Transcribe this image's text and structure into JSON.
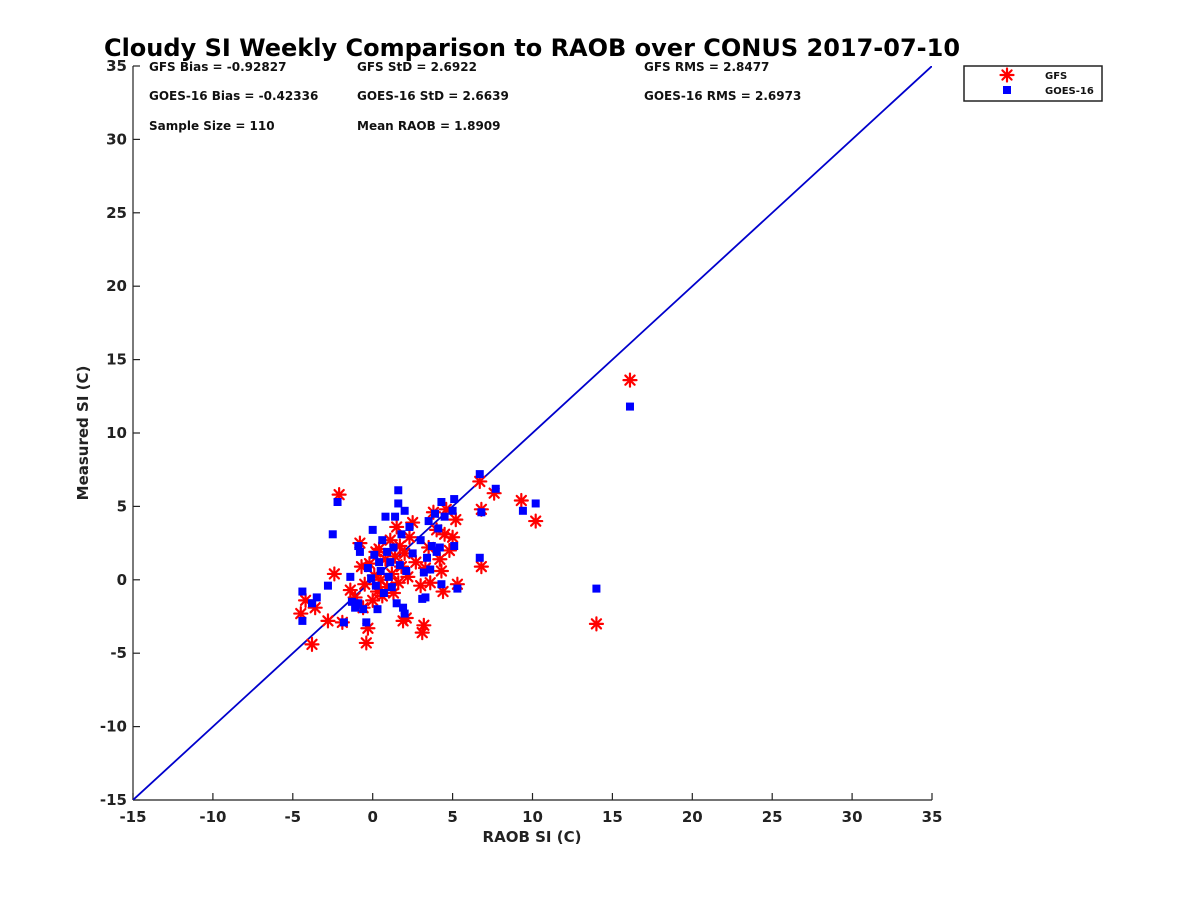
{
  "chart_data": {
    "type": "scatter",
    "title": "Cloudy SI Weekly Comparison to RAOB over CONUS 2017-07-10",
    "xlabel": "RAOB SI (C)",
    "ylabel": "Measured SI (C)",
    "xlim": [
      -15,
      35
    ],
    "ylim": [
      -15,
      35
    ],
    "x_ticks": [
      "-15",
      "-10",
      "-5",
      "0",
      "5",
      "10",
      "15",
      "20",
      "25",
      "30",
      "35"
    ],
    "y_ticks": [
      "-15",
      "-10",
      "-5",
      "0",
      "5",
      "10",
      "15",
      "20",
      "25",
      "30",
      "35"
    ],
    "grid": false,
    "legend_position": "outside top-right",
    "reference_line": {
      "type": "one-to-one",
      "color": "#0000cc"
    },
    "stats": [
      "GFS Bias = -0.92827",
      "GFS StD = 2.6922",
      "GFS RMS = 2.8477",
      "GOES-16 Bias = -0.42336",
      "GOES-16 StD = 2.6639",
      "GOES-16 RMS = 2.6973",
      "Sample Size = 110",
      "Mean RAOB = 1.8909"
    ],
    "series": [
      {
        "name": "GFS",
        "marker": "asterisk",
        "color": "#ff0000",
        "points": [
          [
            -4.5,
            -2.3
          ],
          [
            -4.2,
            -1.4
          ],
          [
            -3.8,
            -4.4
          ],
          [
            -3.6,
            -1.9
          ],
          [
            -2.8,
            -2.8
          ],
          [
            -2.4,
            0.4
          ],
          [
            -2.1,
            5.8
          ],
          [
            -1.9,
            -2.9
          ],
          [
            -1.4,
            -0.7
          ],
          [
            -1.1,
            -1.2
          ],
          [
            -0.8,
            2.5
          ],
          [
            -0.7,
            0.9
          ],
          [
            -0.6,
            -1.9
          ],
          [
            -0.5,
            -0.3
          ],
          [
            -0.4,
            -4.3
          ],
          [
            -0.3,
            -3.3
          ],
          [
            -0.2,
            1.1
          ],
          [
            0.0,
            -1.4
          ],
          [
            0.1,
            0.3
          ],
          [
            0.2,
            1.9
          ],
          [
            0.3,
            -0.8
          ],
          [
            0.4,
            2.1
          ],
          [
            0.5,
            0.0
          ],
          [
            0.6,
            -1.1
          ],
          [
            0.8,
            1.4
          ],
          [
            0.9,
            -0.5
          ],
          [
            1.1,
            2.7
          ],
          [
            1.2,
            0.4
          ],
          [
            1.3,
            -0.9
          ],
          [
            1.4,
            1.6
          ],
          [
            1.5,
            3.6
          ],
          [
            1.6,
            -0.2
          ],
          [
            1.7,
            2.3
          ],
          [
            1.8,
            0.9
          ],
          [
            1.9,
            -2.8
          ],
          [
            2.0,
            1.8
          ],
          [
            2.1,
            -2.6
          ],
          [
            2.2,
            0.2
          ],
          [
            2.3,
            2.9
          ],
          [
            2.5,
            3.9
          ],
          [
            2.7,
            1.2
          ],
          [
            3.0,
            -0.4
          ],
          [
            3.1,
            -3.6
          ],
          [
            3.2,
            -3.1
          ],
          [
            3.3,
            0.8
          ],
          [
            3.5,
            2.2
          ],
          [
            3.6,
            -0.2
          ],
          [
            3.8,
            4.6
          ],
          [
            4.0,
            3.4
          ],
          [
            4.2,
            1.4
          ],
          [
            4.3,
            0.6
          ],
          [
            4.4,
            -0.8
          ],
          [
            4.5,
            3.1
          ],
          [
            4.6,
            4.8
          ],
          [
            4.8,
            2.0
          ],
          [
            5.0,
            2.9
          ],
          [
            5.2,
            4.1
          ],
          [
            5.3,
            -0.3
          ],
          [
            6.7,
            6.7
          ],
          [
            6.8,
            4.8
          ],
          [
            6.8,
            0.9
          ],
          [
            7.6,
            5.9
          ],
          [
            9.3,
            5.4
          ],
          [
            10.2,
            4.0
          ],
          [
            14.0,
            -3.0
          ],
          [
            16.1,
            13.6
          ]
        ]
      },
      {
        "name": "GOES-16",
        "marker": "square",
        "color": "#0000ff",
        "points": [
          [
            -4.4,
            -0.8
          ],
          [
            -4.4,
            -2.8
          ],
          [
            -3.8,
            -1.6
          ],
          [
            -3.5,
            -1.2
          ],
          [
            -2.8,
            -0.4
          ],
          [
            -2.5,
            3.1
          ],
          [
            -2.2,
            5.3
          ],
          [
            -1.8,
            -2.9
          ],
          [
            -1.4,
            0.2
          ],
          [
            -1.3,
            -1.5
          ],
          [
            -1.1,
            -1.9
          ],
          [
            -0.9,
            -1.6
          ],
          [
            -0.9,
            2.3
          ],
          [
            -0.8,
            1.9
          ],
          [
            -0.6,
            -2.0
          ],
          [
            -0.4,
            -2.9
          ],
          [
            -0.3,
            0.8
          ],
          [
            -0.1,
            0.1
          ],
          [
            0.0,
            3.4
          ],
          [
            0.1,
            1.7
          ],
          [
            0.2,
            -0.4
          ],
          [
            0.3,
            -2.0
          ],
          [
            0.4,
            1.2
          ],
          [
            0.5,
            0.6
          ],
          [
            0.6,
            2.7
          ],
          [
            0.7,
            -0.9
          ],
          [
            0.8,
            4.3
          ],
          [
            0.9,
            1.9
          ],
          [
            1.0,
            0.2
          ],
          [
            1.1,
            1.2
          ],
          [
            1.2,
            -0.5
          ],
          [
            1.3,
            2.2
          ],
          [
            1.4,
            4.3
          ],
          [
            1.5,
            -1.6
          ],
          [
            1.6,
            6.1
          ],
          [
            1.6,
            5.2
          ],
          [
            1.7,
            1.0
          ],
          [
            1.8,
            3.1
          ],
          [
            1.9,
            -1.9
          ],
          [
            2.0,
            -2.3
          ],
          [
            2.0,
            4.7
          ],
          [
            2.1,
            0.6
          ],
          [
            2.3,
            3.6
          ],
          [
            2.5,
            1.8
          ],
          [
            3.0,
            2.7
          ],
          [
            3.1,
            -1.3
          ],
          [
            3.2,
            0.5
          ],
          [
            3.3,
            -1.2
          ],
          [
            3.4,
            1.5
          ],
          [
            3.5,
            4.0
          ],
          [
            3.6,
            0.7
          ],
          [
            3.7,
            2.3
          ],
          [
            3.9,
            4.5
          ],
          [
            4.0,
            1.9
          ],
          [
            4.1,
            3.5
          ],
          [
            4.2,
            2.2
          ],
          [
            4.3,
            5.3
          ],
          [
            4.3,
            -0.3
          ],
          [
            4.5,
            4.3
          ],
          [
            5.0,
            4.7
          ],
          [
            5.1,
            5.5
          ],
          [
            5.1,
            2.3
          ],
          [
            5.3,
            -0.6
          ],
          [
            6.7,
            7.2
          ],
          [
            6.7,
            1.5
          ],
          [
            6.8,
            4.6
          ],
          [
            7.7,
            6.2
          ],
          [
            9.4,
            4.7
          ],
          [
            10.2,
            5.2
          ],
          [
            14.0,
            -0.6
          ],
          [
            16.1,
            11.8
          ]
        ]
      }
    ]
  }
}
